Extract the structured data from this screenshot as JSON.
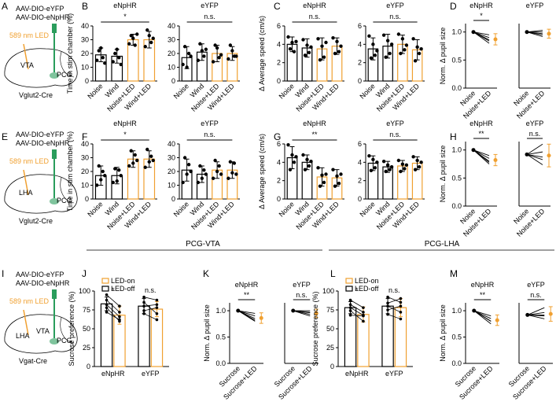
{
  "panel_labels": [
    "A",
    "B",
    "C",
    "D",
    "E",
    "F",
    "G",
    "H",
    "I",
    "J",
    "K",
    "L",
    "M"
  ],
  "schematics": [
    {
      "virus": [
        "AAV-DIO-eYFP",
        "AAV-DIO-eNpHR"
      ],
      "led": "589 nm LED",
      "regions": [
        "VTA",
        "PCG"
      ],
      "mouse": "Vglut2-Cre"
    },
    {
      "virus": [
        "AAV-DIO-eYFP",
        "AAV-DIO-eNpHR"
      ],
      "led": "589 nm LED",
      "regions": [
        "LHA",
        "PCG"
      ],
      "mouse": "Vglut2-Cre"
    },
    {
      "virus": [
        "AAV-DIO-eYFP",
        "AAV-DIO-eNpHR"
      ],
      "led": "589 nm LED",
      "regions": [
        "LHA",
        "VTA",
        "PCG"
      ],
      "mouse": "Vgat-Cre"
    }
  ],
  "section_headers": [
    "PCG-VTA",
    "PCG-LHA"
  ],
  "chart_data": [
    {
      "type": "bar",
      "title": "eNpHR",
      "ylabel": "Time in stim chamber (%)",
      "sig": "*",
      "categories": [
        "Noise",
        "Wind",
        "Noise+LED",
        "Wind+LED"
      ],
      "values": [
        19,
        18,
        30,
        30
      ],
      "errors": [
        5,
        5,
        4,
        6
      ],
      "colors": [
        "#000000",
        "#000000",
        "#f0a030",
        "#f0a030"
      ],
      "points": [
        [
          15,
          22,
          24,
          17,
          13
        ],
        [
          14,
          20,
          23,
          17,
          12
        ],
        [
          27,
          33,
          31,
          26,
          34
        ],
        [
          25,
          37,
          33,
          28,
          31
        ]
      ],
      "ylim": [
        0,
        40
      ],
      "yticks": [
        0,
        10,
        20,
        30,
        40
      ]
    },
    {
      "type": "bar",
      "title": "eYFP",
      "sig": "n.s.",
      "categories": [
        "Noise",
        "Wind",
        "Noise+LED",
        "Wind+LED"
      ],
      "values": [
        17,
        21,
        20,
        20
      ],
      "errors": [
        8,
        6,
        6,
        5
      ],
      "colors": [
        "#000000",
        "#000000",
        "#f0a030",
        "#f0a030"
      ],
      "points": [
        [
          12,
          25,
          10,
          20,
          18
        ],
        [
          15,
          27,
          22,
          18,
          23
        ],
        [
          14,
          26,
          24,
          17,
          19
        ],
        [
          16,
          26,
          22,
          18,
          18
        ]
      ],
      "ylim": [
        0,
        40
      ],
      "yticks": [
        0,
        10,
        20,
        30,
        40
      ]
    },
    {
      "type": "bar",
      "title": "eNpHR",
      "ylabel": "Δ Average speed (cm/s)",
      "sig": "n.s.",
      "categories": [
        "Noise",
        "Wind",
        "Noise+LED",
        "Wind+LED"
      ],
      "values": [
        4.0,
        3.6,
        3.5,
        3.8
      ],
      "errors": [
        0.8,
        1.0,
        1.2,
        0.9
      ],
      "colors": [
        "#000000",
        "#000000",
        "#f0a030",
        "#f0a030"
      ],
      "points": [
        [
          4.8,
          3.5,
          4.2,
          3.2,
          4.3
        ],
        [
          4.5,
          2.8,
          3.9,
          3.1,
          3.7
        ],
        [
          4.6,
          2.3,
          3.8,
          2.6,
          4.2
        ],
        [
          4.7,
          3.0,
          4.3,
          3.2,
          3.8
        ]
      ],
      "ylim": [
        0,
        6
      ],
      "yticks": [
        0,
        2,
        4,
        6
      ]
    },
    {
      "type": "bar",
      "title": "eYFP",
      "sig": "n.s.",
      "categories": [
        "Noise",
        "Wind",
        "Noise+LED",
        "Wind+LED"
      ],
      "values": [
        3.5,
        3.8,
        4.0,
        3.4
      ],
      "errors": [
        1.2,
        1.3,
        1.0,
        1.1
      ],
      "colors": [
        "#000000",
        "#000000",
        "#f0a030",
        "#f0a030"
      ],
      "points": [
        [
          4.9,
          2.5,
          4.0,
          2.8,
          3.3
        ],
        [
          5.0,
          2.6,
          4.4,
          3.0,
          4.0
        ],
        [
          5.1,
          3.0,
          4.6,
          3.4,
          3.9
        ],
        [
          4.6,
          2.2,
          3.7,
          3.0,
          3.5
        ]
      ],
      "ylim": [
        0,
        6
      ],
      "yticks": [
        0,
        2,
        4,
        6
      ]
    },
    {
      "type": "line",
      "title": "eNpHR",
      "ylabel": "Norm. Δ pupil size",
      "sig": "*",
      "categories": [
        "Noise",
        "Noise+LED"
      ],
      "values": [
        1,
        0.87
      ],
      "errors": [
        0,
        0.1
      ],
      "colors": [
        "#000000",
        "#f0a030"
      ],
      "lines": [
        [
          1,
          0.95
        ],
        [
          1,
          0.9
        ],
        [
          1,
          0.86
        ],
        [
          1,
          0.8
        ],
        [
          1,
          0.84
        ]
      ],
      "ylim": [
        0,
        1.15
      ],
      "yticks": [
        {
          "value": 0,
          "label": "0.0"
        },
        {
          "value": 0.5,
          "label": "0.5"
        },
        {
          "value": 1,
          "label": "1.0"
        }
      ]
    },
    {
      "type": "line",
      "title": "eYFP",
      "categories": [
        "Noise",
        "Noise+LED"
      ],
      "values": [
        1,
        0.97
      ],
      "errors": [
        0,
        0.08
      ],
      "colors": [
        "#000000",
        "#f0a030"
      ],
      "lines": [
        [
          1,
          1.0
        ],
        [
          1,
          0.95
        ],
        [
          1,
          1.03
        ],
        [
          1,
          0.97
        ],
        [
          1,
          0.92
        ]
      ],
      "ylim": [
        0,
        1.15
      ]
    },
    {
      "type": "bar",
      "title": "eNpHR",
      "ylabel": "Time in stim chamber (%)",
      "sig": "*",
      "categories": [
        "Noise",
        "Wind",
        "Noise+LED",
        "Wind+LED"
      ],
      "values": [
        17,
        17,
        29,
        29
      ],
      "errors": [
        7,
        6,
        6,
        6
      ],
      "colors": [
        "#000000",
        "#000000",
        "#f0a030",
        "#f0a030"
      ],
      "points": [
        [
          10,
          24,
          14,
          20,
          17
        ],
        [
          12,
          22,
          13,
          21,
          17
        ],
        [
          24,
          35,
          26,
          32,
          28
        ],
        [
          23,
          36,
          27,
          31,
          28
        ]
      ],
      "ylim": [
        0,
        40
      ],
      "yticks": [
        0,
        10,
        20,
        30,
        40
      ]
    },
    {
      "type": "bar",
      "title": "eYFP",
      "sig": "n.s.",
      "categories": [
        "Noise",
        "Wind",
        "Noise+LED",
        "Wind+LED"
      ],
      "values": [
        21,
        18,
        21,
        21
      ],
      "errors": [
        8,
        6,
        6,
        6
      ],
      "colors": [
        "#000000",
        "#000000",
        "#f0a030",
        "#f0a030"
      ],
      "points": [
        [
          12,
          30,
          18,
          25,
          20
        ],
        [
          12,
          24,
          15,
          21,
          18
        ],
        [
          15,
          28,
          20,
          24,
          18
        ],
        [
          15,
          27,
          19,
          26,
          18
        ]
      ],
      "ylim": [
        0,
        40
      ],
      "yticks": [
        0,
        10,
        20,
        30,
        40
      ]
    },
    {
      "type": "bar",
      "title": "eNpHR",
      "ylabel": "Δ Average speed (cm/s)",
      "sig": "**",
      "categories": [
        "Noise",
        "Wind",
        "Noise+LED",
        "Wind+LED"
      ],
      "values": [
        4.5,
        4.0,
        2.4,
        2.3
      ],
      "errors": [
        1.2,
        0.8,
        1.0,
        0.9
      ],
      "colors": [
        "#000000",
        "#000000",
        "#f0a030",
        "#f0a030"
      ],
      "points": [
        [
          5.9,
          3.2,
          4.8,
          4.0,
          4.6
        ],
        [
          4.8,
          3.2,
          4.3,
          3.6,
          4.1
        ],
        [
          3.4,
          1.4,
          2.6,
          1.8,
          2.7
        ],
        [
          3.2,
          1.4,
          2.5,
          1.7,
          2.7
        ]
      ],
      "ylim": [
        0,
        6
      ],
      "yticks": [
        0,
        2,
        4,
        6
      ]
    },
    {
      "type": "bar",
      "title": "eYFP",
      "sig": "n.s.",
      "categories": [
        "Noise",
        "Wind",
        "Noise+LED",
        "Wind+LED"
      ],
      "values": [
        3.9,
        3.5,
        3.6,
        3.9
      ],
      "errors": [
        0.8,
        0.6,
        0.6,
        0.7
      ],
      "colors": [
        "#000000",
        "#000000",
        "#f0a030",
        "#f0a030"
      ],
      "points": [
        [
          4.7,
          3.1,
          4.3,
          3.4,
          4.0
        ],
        [
          4.1,
          3.0,
          3.7,
          3.2,
          3.5
        ],
        [
          4.2,
          3.0,
          3.8,
          3.3,
          3.7
        ],
        [
          4.6,
          3.2,
          4.2,
          3.5,
          4.0
        ]
      ],
      "ylim": [
        0,
        6
      ],
      "yticks": [
        0,
        2,
        4,
        6
      ]
    },
    {
      "type": "line",
      "title": "eNpHR",
      "ylabel": "Norm. Δ pupil size",
      "sig": "**",
      "categories": [
        "Noise",
        "Noise+LED"
      ],
      "values": [
        1,
        0.82
      ],
      "errors": [
        0,
        0.1
      ],
      "colors": [
        "#000000",
        "#f0a030"
      ],
      "lines": [
        [
          1,
          0.9
        ],
        [
          1,
          0.85
        ],
        [
          1,
          0.8
        ],
        [
          1,
          0.75
        ],
        [
          1,
          0.78
        ]
      ],
      "ylim": [
        0,
        1.15
      ],
      "yticks": [
        {
          "value": 0,
          "label": "0.0"
        },
        {
          "value": 0.5,
          "label": "0.5"
        },
        {
          "value": 1,
          "label": "1.0"
        }
      ]
    },
    {
      "type": "line",
      "title": "eYFP",
      "sig": "n.s.",
      "categories": [
        "Noise",
        "Noise+LED"
      ],
      "values": [
        1,
        0.98
      ],
      "errors": [
        0,
        0.22
      ],
      "colors": [
        "#000000",
        "#f0a030"
      ],
      "lines": [
        [
          1,
          1.2
        ],
        [
          1,
          1.05
        ],
        [
          1,
          0.9
        ],
        [
          1,
          0.8
        ],
        [
          1,
          0.95
        ]
      ],
      "ylim": [
        0,
        1.25
      ]
    },
    {
      "type": "grouped_bar",
      "ylabel": "Sucrose preference (%)",
      "sig": [
        "*",
        "n.s."
      ],
      "categories": [
        "eNpHR",
        "eYFP"
      ],
      "series": [
        {
          "name": "LED-on",
          "color": "#f0a030",
          "values": [
            68,
            76
          ],
          "errors": [
            12,
            10
          ]
        },
        {
          "name": "LED-off",
          "color": "#000000",
          "values": [
            83,
            80
          ],
          "errors": [
            9,
            10
          ]
        }
      ],
      "pairs": [
        [
          [
            95,
            80
          ],
          [
            88,
            72
          ],
          [
            82,
            66
          ],
          [
            78,
            60
          ],
          [
            72,
            62
          ]
        ],
        [
          [
            92,
            88
          ],
          [
            85,
            70
          ],
          [
            80,
            82
          ],
          [
            74,
            78
          ],
          [
            70,
            62
          ]
        ]
      ],
      "ylim": [
        0,
        100
      ],
      "yticks": [
        0,
        25,
        50,
        75,
        100
      ]
    },
    {
      "type": "line",
      "title": "eNpHR",
      "ylabel": "Norm. Δ pupil size",
      "sig": "**",
      "categories": [
        "Sucrose",
        "Sucrose+LED"
      ],
      "values": [
        1,
        0.86
      ],
      "errors": [
        0,
        0.1
      ],
      "colors": [
        "#000000",
        "#f0a030"
      ],
      "lines": [
        [
          1,
          0.95
        ],
        [
          1,
          0.9
        ],
        [
          1,
          0.85
        ],
        [
          1,
          0.8
        ],
        [
          1,
          0.82
        ]
      ],
      "ylim": [
        0,
        1.15
      ],
      "yticks": [
        {
          "value": 0,
          "label": "0.0"
        },
        {
          "value": 0.5,
          "label": "0.5"
        },
        {
          "value": 1,
          "label": "1.0"
        }
      ]
    },
    {
      "type": "line",
      "title": "eYFP",
      "sig": "n.s.",
      "categories": [
        "Sucrose",
        "Sucrose+LED"
      ],
      "values": [
        1,
        0.95
      ],
      "errors": [
        0,
        0.08
      ],
      "colors": [
        "#000000",
        "#f0a030"
      ],
      "lines": [
        [
          1,
          1.0
        ],
        [
          1,
          0.97
        ],
        [
          1,
          0.93
        ],
        [
          1,
          0.9
        ],
        [
          1,
          0.96
        ]
      ],
      "ylim": [
        0,
        1.15
      ]
    },
    {
      "type": "grouped_bar",
      "ylabel": "Sucrose preference (%)",
      "sig": [
        "*",
        "n.s."
      ],
      "categories": [
        "eNpHR",
        "eYFP"
      ],
      "series": [
        {
          "name": "LED-on",
          "color": "#f0a030",
          "values": [
            69,
            78
          ],
          "errors": [
            10,
            12
          ]
        },
        {
          "name": "LED-off",
          "color": "#000000",
          "values": [
            78,
            80
          ],
          "errors": [
            8,
            10
          ]
        }
      ],
      "pairs": [
        [
          [
            88,
            78
          ],
          [
            82,
            72
          ],
          [
            78,
            68
          ],
          [
            74,
            60
          ],
          [
            68,
            67
          ]
        ],
        [
          [
            92,
            85
          ],
          [
            84,
            90
          ],
          [
            80,
            72
          ],
          [
            75,
            80
          ],
          [
            69,
            63
          ]
        ]
      ],
      "ylim": [
        0,
        100
      ],
      "yticks": [
        0,
        25,
        50,
        75,
        100
      ]
    },
    {
      "type": "line",
      "title": "eNpHR",
      "ylabel": "Norm. Δ pupil size",
      "sig": "**",
      "categories": [
        "Sucrose",
        "Sucrose+LED"
      ],
      "values": [
        1,
        0.82
      ],
      "errors": [
        0,
        0.1
      ],
      "colors": [
        "#000000",
        "#f0a030"
      ],
      "lines": [
        [
          1,
          0.9
        ],
        [
          1,
          0.85
        ],
        [
          1,
          0.8
        ],
        [
          1,
          0.75
        ],
        [
          1,
          0.8
        ]
      ],
      "ylim": [
        0,
        1.15
      ],
      "yticks": [
        {
          "value": 0,
          "label": "0.0"
        },
        {
          "value": 0.5,
          "label": "0.5"
        },
        {
          "value": 1,
          "label": "1.0"
        }
      ]
    },
    {
      "type": "line",
      "title": "eYFP",
      "sig": "n.s.",
      "categories": [
        "Sucrose",
        "Sucrose+LED"
      ],
      "values": [
        1,
        1.02
      ],
      "errors": [
        0,
        0.15
      ],
      "colors": [
        "#000000",
        "#f0a030"
      ],
      "lines": [
        [
          1,
          1.15
        ],
        [
          1,
          1.05
        ],
        [
          1,
          1.0
        ],
        [
          1,
          0.92
        ],
        [
          1,
          0.98
        ]
      ],
      "ylim": [
        0,
        1.25
      ]
    }
  ]
}
